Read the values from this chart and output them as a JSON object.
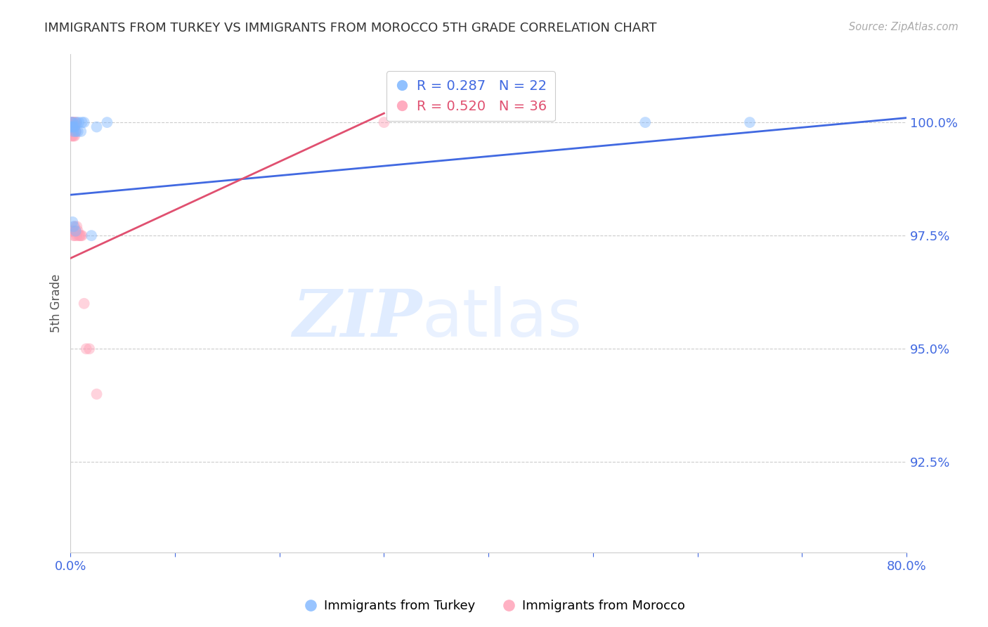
{
  "title": "IMMIGRANTS FROM TURKEY VS IMMIGRANTS FROM MOROCCO 5TH GRADE CORRELATION CHART",
  "source": "Source: ZipAtlas.com",
  "ylabel": "5th Grade",
  "y_tick_labels": [
    "100.0%",
    "97.5%",
    "95.0%",
    "92.5%"
  ],
  "y_tick_values": [
    1.0,
    0.975,
    0.95,
    0.925
  ],
  "xlim": [
    0.0,
    0.8
  ],
  "ylim": [
    0.905,
    1.015
  ],
  "turkey_color": "#7EB6FF",
  "morocco_color": "#FF9EB5",
  "trendline_turkey_color": "#4169E1",
  "trendline_morocco_color": "#E05070",
  "legend_R_turkey": "0.287",
  "legend_N_turkey": "22",
  "legend_R_morocco": "0.520",
  "legend_N_morocco": "36",
  "turkey_trendline": [
    [
      0.0,
      0.984
    ],
    [
      0.8,
      1.001
    ]
  ],
  "morocco_trendline": [
    [
      0.0,
      0.97
    ],
    [
      0.3,
      1.002
    ]
  ],
  "turkey_x": [
    0.001,
    0.001,
    0.002,
    0.002,
    0.003,
    0.003,
    0.004,
    0.005,
    0.006,
    0.007,
    0.008,
    0.01,
    0.011,
    0.013,
    0.02,
    0.025,
    0.035,
    0.55,
    0.65,
    0.002,
    0.003,
    0.005
  ],
  "turkey_y": [
    1.0,
    0.999,
    1.0,
    0.999,
    0.999,
    0.998,
    0.999,
    0.998,
    1.0,
    0.998,
    1.0,
    0.998,
    1.0,
    1.0,
    0.975,
    0.999,
    1.0,
    1.0,
    1.0,
    0.978,
    0.977,
    0.976
  ],
  "morocco_x": [
    0.001,
    0.001,
    0.001,
    0.001,
    0.001,
    0.001,
    0.001,
    0.002,
    0.002,
    0.002,
    0.002,
    0.003,
    0.003,
    0.003,
    0.003,
    0.003,
    0.004,
    0.004,
    0.004,
    0.004,
    0.004,
    0.005,
    0.005,
    0.005,
    0.006,
    0.006,
    0.007,
    0.008,
    0.009,
    0.01,
    0.011,
    0.013,
    0.015,
    0.018,
    0.025,
    0.3
  ],
  "morocco_y": [
    1.0,
    1.0,
    0.999,
    0.998,
    0.998,
    0.997,
    0.976,
    1.0,
    0.999,
    0.997,
    0.976,
    1.0,
    0.999,
    0.997,
    0.976,
    0.975,
    1.0,
    0.999,
    0.997,
    0.977,
    0.975,
    1.0,
    0.998,
    0.976,
    0.977,
    0.975,
    0.976,
    0.975,
    0.975,
    0.975,
    0.975,
    0.96,
    0.95,
    0.95,
    0.94,
    1.0
  ],
  "watermark_zip": "ZIP",
  "watermark_atlas": "atlas",
  "marker_size": 130,
  "marker_alpha": 0.45,
  "background_color": "#FFFFFF",
  "grid_color": "#CCCCCC",
  "axis_label_color": "#4169E1",
  "title_color": "#333333",
  "ylabel_color": "#555555"
}
